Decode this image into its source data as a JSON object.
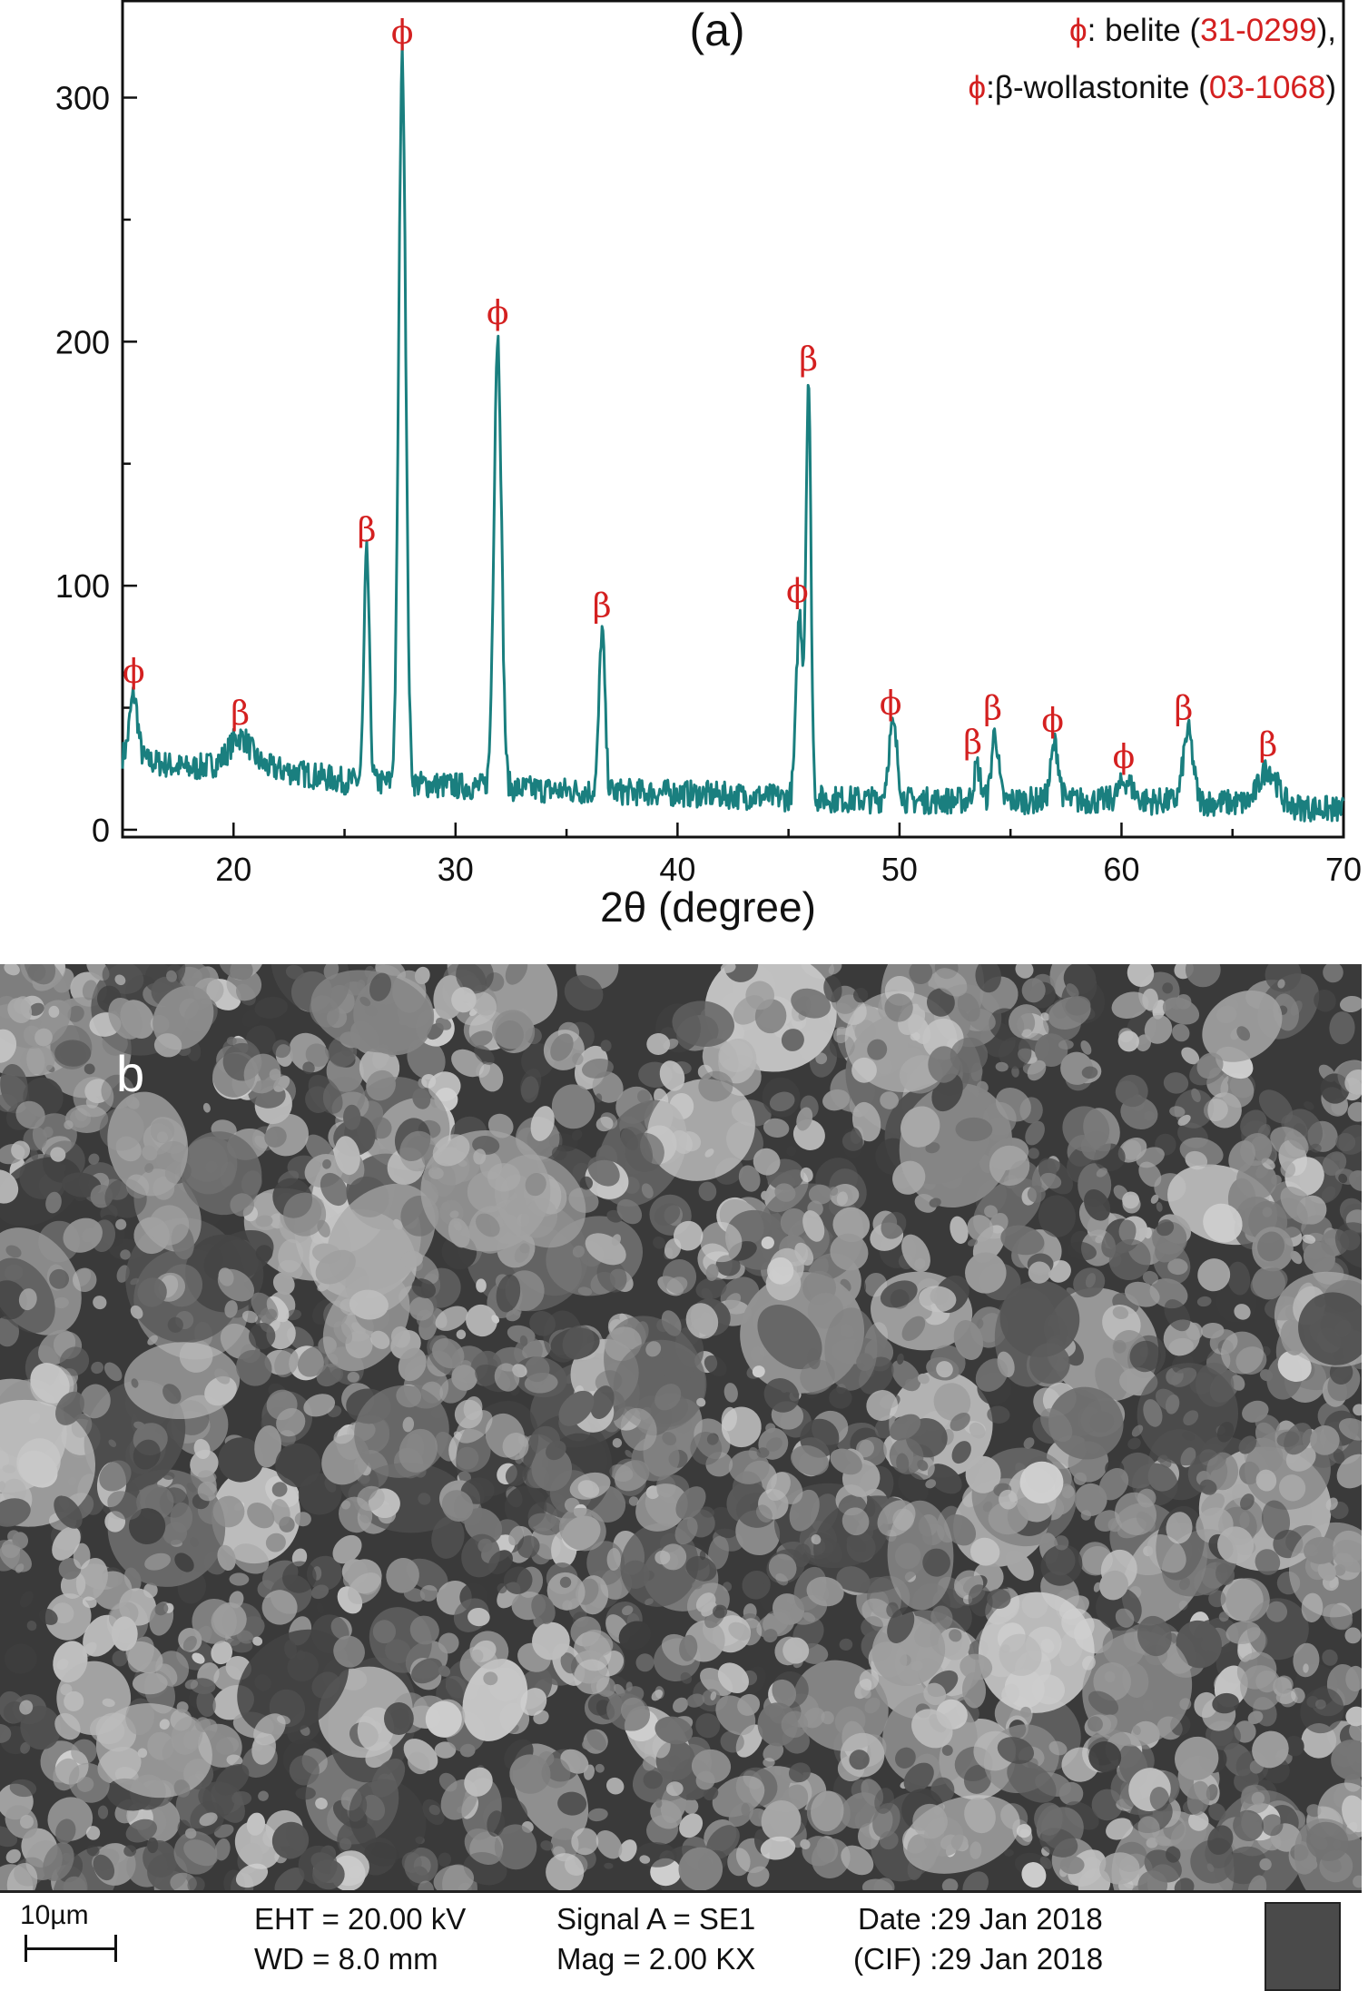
{
  "panel_a": {
    "label": "(a)",
    "legend": [
      {
        "symbol": "ϕ",
        "text": ": belite ",
        "open": "(",
        "code": "31-0299",
        "close": "),"
      },
      {
        "symbol": "ϕ",
        "text": ":β-wollastonite ",
        "open": "(",
        "code": "03-1068",
        "close": ")"
      }
    ],
    "xlabel": "2θ (degree)",
    "ylabel": ""
  },
  "chart_data": {
    "type": "line",
    "title": "",
    "xlabel": "2θ (degree)",
    "ylabel": "",
    "xlim": [
      15,
      70
    ],
    "ylim": [
      -3,
      340
    ],
    "xticks": [
      20,
      30,
      40,
      50,
      60,
      70
    ],
    "yticks": [
      0,
      100,
      200,
      300
    ],
    "grid": false,
    "legend_position": "top-right",
    "series_color": "#1a7f7f",
    "annotation_color": "#d42020",
    "baseline": [
      [
        15,
        30
      ],
      [
        18,
        25
      ],
      [
        20,
        28
      ],
      [
        25,
        20
      ],
      [
        30,
        18
      ],
      [
        35,
        16
      ],
      [
        40,
        15
      ],
      [
        45,
        13
      ],
      [
        50,
        12
      ],
      [
        55,
        12
      ],
      [
        60,
        12
      ],
      [
        65,
        11
      ],
      [
        70,
        8
      ]
    ],
    "peaks": [
      {
        "x": 15.5,
        "y": 55,
        "w": 0.18
      },
      {
        "x": 20.3,
        "y": 38,
        "w": 0.45
      },
      {
        "x": 26.0,
        "y": 113,
        "w": 0.12
      },
      {
        "x": 27.6,
        "y": 317,
        "w": 0.16
      },
      {
        "x": 31.9,
        "y": 202,
        "w": 0.17
      },
      {
        "x": 36.6,
        "y": 82,
        "w": 0.13
      },
      {
        "x": 45.5,
        "y": 88,
        "w": 0.15
      },
      {
        "x": 45.9,
        "y": 183,
        "w": 0.11
      },
      {
        "x": 49.7,
        "y": 42,
        "w": 0.2
      },
      {
        "x": 53.5,
        "y": 26,
        "w": 0.15
      },
      {
        "x": 54.3,
        "y": 40,
        "w": 0.15
      },
      {
        "x": 57.0,
        "y": 35,
        "w": 0.18
      },
      {
        "x": 60.2,
        "y": 20,
        "w": 0.3
      },
      {
        "x": 63.0,
        "y": 40,
        "w": 0.22
      },
      {
        "x": 66.6,
        "y": 25,
        "w": 0.4
      }
    ],
    "annotations": [
      {
        "x": 15.5,
        "y": 55,
        "text": "ϕ"
      },
      {
        "x": 20.3,
        "y": 38,
        "text": "β"
      },
      {
        "x": 26.0,
        "y": 113,
        "text": "β"
      },
      {
        "x": 27.6,
        "y": 317,
        "text": "ϕ"
      },
      {
        "x": 31.9,
        "y": 202,
        "text": "ϕ"
      },
      {
        "x": 36.6,
        "y": 82,
        "text": "β"
      },
      {
        "x": 45.4,
        "y": 88,
        "text": "ϕ"
      },
      {
        "x": 45.9,
        "y": 183,
        "text": "β"
      },
      {
        "x": 49.6,
        "y": 42,
        "text": "ϕ"
      },
      {
        "x": 53.3,
        "y": 26,
        "text": "β"
      },
      {
        "x": 54.2,
        "y": 40,
        "text": "β"
      },
      {
        "x": 56.9,
        "y": 35,
        "text": "ϕ"
      },
      {
        "x": 60.1,
        "y": 20,
        "text": "ϕ"
      },
      {
        "x": 62.8,
        "y": 40,
        "text": "β"
      },
      {
        "x": 66.6,
        "y": 25,
        "text": "β"
      }
    ]
  },
  "panel_b": {
    "label": "b",
    "scale": "10µm",
    "eht": "EHT = 20.00 kV",
    "wd": "WD = 8.0 mm",
    "signal": "Signal A = SE1",
    "mag": "Mag = 2.00 KX",
    "date": "Date :29 Jan 2018",
    "cif": "(CIF) :29 Jan 2018"
  }
}
